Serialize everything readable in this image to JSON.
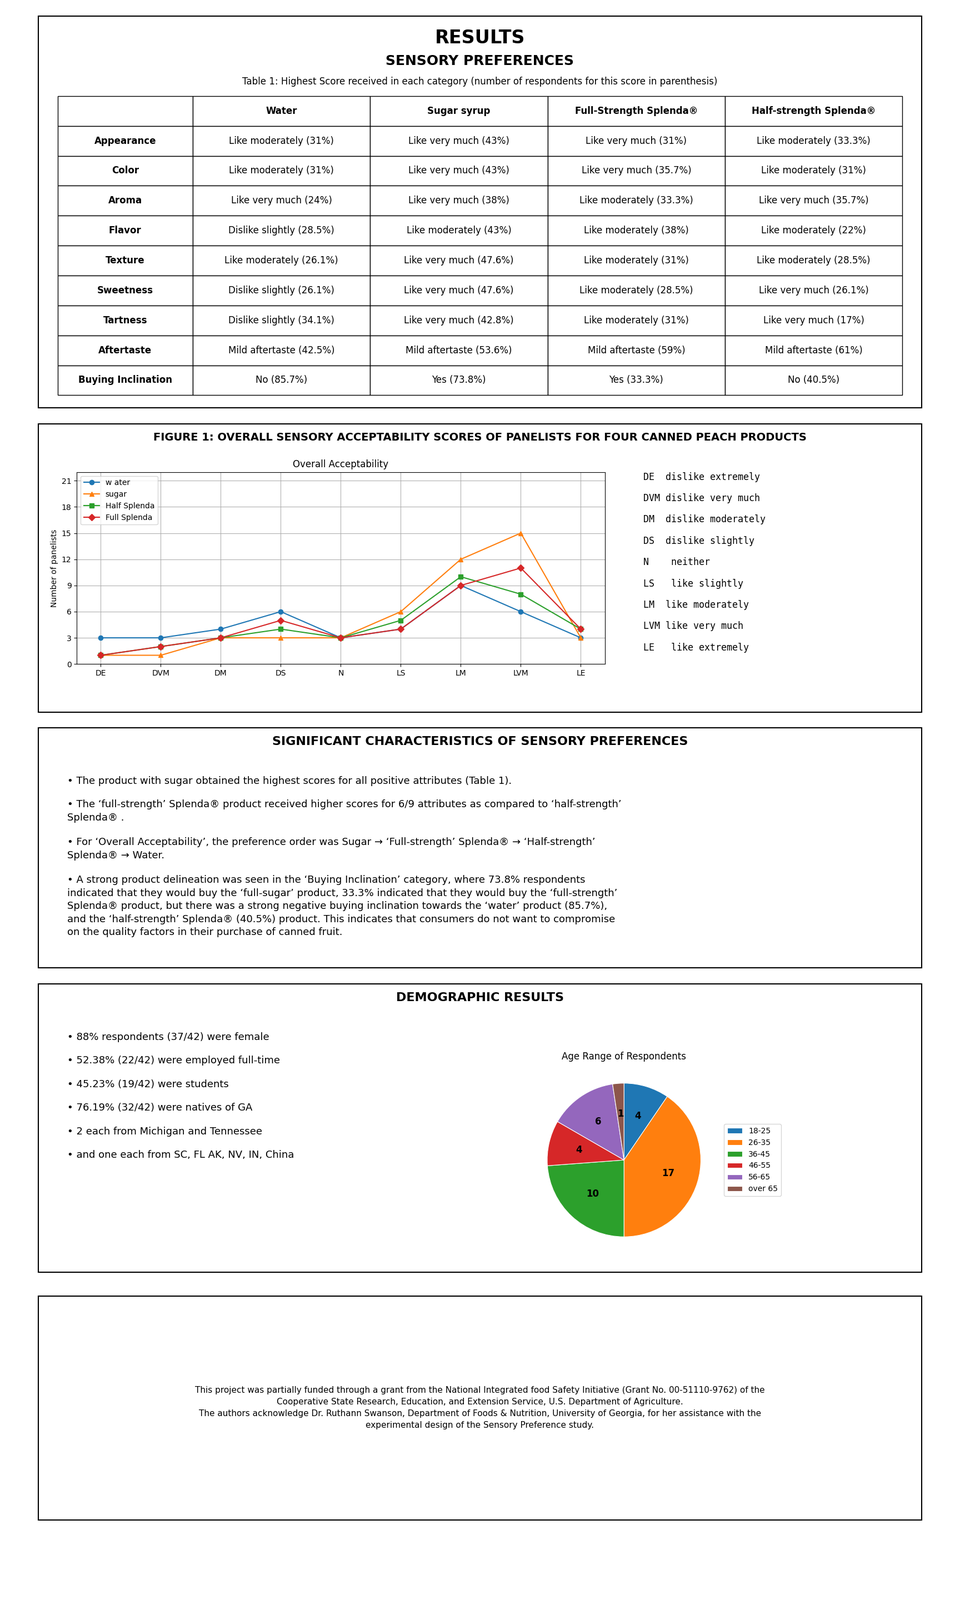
{
  "chart_data": [
    {
      "type": "table",
      "title": "RESULTS",
      "subtitle": "SENSORY PREFERENCES",
      "annotations": [
        "Table 1: Highest Score received in each category (number of respondents for this score in parenthesis)"
      ],
      "categories": [
        "Appearance",
        "Color",
        "Aroma",
        "Flavor",
        "Texture",
        "Sweetness",
        "Tartness",
        "Aftertaste",
        "Buying Inclination"
      ],
      "series": [
        {
          "name": "Water",
          "values": [
            "Like moderately (31%)",
            "Like moderately (31%)",
            "Like very much (24%)",
            "Dislike slightly (28.5%)",
            "Like moderately (26.1%)",
            "Dislike slightly (26.1%)",
            "Dislike slightly (34.1%)",
            "Mild aftertaste (42.5%)",
            "No (85.7%)"
          ]
        },
        {
          "name": "Sugar syrup",
          "values": [
            "Like very much (43%)",
            "Like very much (43%)",
            "Like very much (38%)",
            "Like moderately (43%)",
            "Like very much (47.6%)",
            "Like very much (47.6%)",
            "Like very much (42.8%)",
            "Mild aftertaste (53.6%)",
            "Yes (73.8%)"
          ]
        },
        {
          "name": "Full-Strength Splenda®",
          "values": [
            "Like very much (31%)",
            "Like very much (35.7%)",
            "Like moderately (33.3%)",
            "Like moderately (38%)",
            "Like moderately (31%)",
            "Like moderately (28.5%)",
            "Like moderately (31%)",
            "Mild aftertaste (59%)",
            "Yes (33.3%)"
          ]
        },
        {
          "name": "Half-strength Splenda®",
          "values": [
            "Like moderately (33.3%)",
            "Like moderately (31%)",
            "Like very much (35.7%)",
            "Like moderately (22%)",
            "Like moderately (28.5%)",
            "Like very much (26.1%)",
            "Like very much (17%)",
            "Mild aftertaste (61%)",
            "No (40.5%)"
          ]
        }
      ]
    },
    {
      "type": "line",
      "title": "FIGURE 1: OVERALL SENSORY ACCEPTABILITY SCORES OF PANELISTS FOR FOUR CANNED PEACH PRODUCTS",
      "subtitle": "Overall Acceptability",
      "ylabel": "Number of panelists",
      "categories": [
        "DE",
        "DVM",
        "DM",
        "DS",
        "N",
        "LS",
        "LM",
        "LVM",
        "LE"
      ],
      "series": [
        {
          "name": "w ater",
          "color": "#1f77b4",
          "marker": "circle",
          "values": [
            3,
            3,
            4,
            6,
            3,
            4,
            9,
            6,
            3
          ]
        },
        {
          "name": "sugar",
          "color": "#ff7f0e",
          "marker": "triangle",
          "values": [
            1,
            1,
            3,
            3,
            3,
            6,
            12,
            15,
            3
          ]
        },
        {
          "name": "Half Splenda",
          "color": "#2ca02c",
          "marker": "square",
          "values": [
            1,
            2,
            3,
            4,
            3,
            5,
            10,
            8,
            4
          ]
        },
        {
          "name": "Full Splenda",
          "color": "#d62728",
          "marker": "diamond",
          "values": [
            1,
            2,
            3,
            5,
            3,
            4,
            9,
            11,
            4
          ]
        }
      ],
      "ylim": [
        0,
        22
      ],
      "yticks": [
        0,
        3,
        6,
        9,
        12,
        15,
        18,
        21
      ],
      "grid": true,
      "legend": "upper left",
      "annotations": [
        "DE  dislike extremely",
        "DVM dislike very much",
        "DM  dislike moderately",
        "DS  dislike slightly",
        "N    neither",
        "LS   like slightly",
        "LM  like moderately",
        "LVM like very much",
        "LE   like extremely"
      ]
    },
    {
      "type": "text",
      "title": "SIGNIFICANT CHARACTERISTICS OF SENSORY PREFERENCES",
      "annotations": [
        "• The product with sugar obtained the highest scores for all positive attributes (Table 1).",
        "• The ‘full-strength’ Splenda® product received higher scores for 6/9 attributes as compared to ‘half-strength’\nSplenda® .",
        "• For ‘Overall Acceptability’, the preference order was Sugar → ‘Full-strength’ Splenda® → ‘Half-strength’\nSplenda® → Water.",
        "• A strong product delineation was seen in the ‘Buying Inclination’ category, where 73.8% respondents\nindicated that they would buy the ‘full-sugar’ product, 33.3% indicated that they would buy the ‘full-strength’\nSplenda® product, but there was a strong negative buying inclination towards the ‘water’ product (85.7%),\nand the ‘half-strength’ Splenda® (40.5%) product. This indicates that consumers do not want to compromise\non the quality factors in their purchase of canned fruit."
      ]
    },
    {
      "type": "text",
      "title": "DEMOGRAPHIC RESULTS",
      "annotations": [
        "• 88% respondents (37/42) were female",
        "• 52.38% (22/42) were employed full-time",
        "• 45.23% (19/42) were students",
        "• 76.19% (32/42) were natives of GA",
        "• 2 each from Michigan and Tennessee",
        "• and one each from SC, FL AK, NV, IN, China"
      ]
    },
    {
      "type": "pie",
      "title": "Age Range of Respondents",
      "categories": [
        "18-25",
        "26-35",
        "36-45",
        "46-55",
        "56-65",
        "over 65"
      ],
      "values": [
        4,
        17,
        10,
        4,
        6,
        1
      ],
      "colors": [
        "#1f77b4",
        "#ff7f0e",
        "#2ca02c",
        "#d62728",
        "#9467bd",
        "#8c564b"
      ],
      "data_labels": true,
      "legend": "center left"
    },
    {
      "type": "text",
      "annotations": [
        "This project was partially funded through a grant from the National Integrated food Safety Initiative (Grant No. 00-51110-9762) of the\nCooperative State Research, Education, and Extension Service, U.S. Department of Agriculture.\nThe authors acknowledge Dr. Ruthann Swanson, Department of Foods & Nutrition, University of Georgia, for her assistance with the\nexperimental design of the Sensory Preference study."
      ]
    }
  ]
}
